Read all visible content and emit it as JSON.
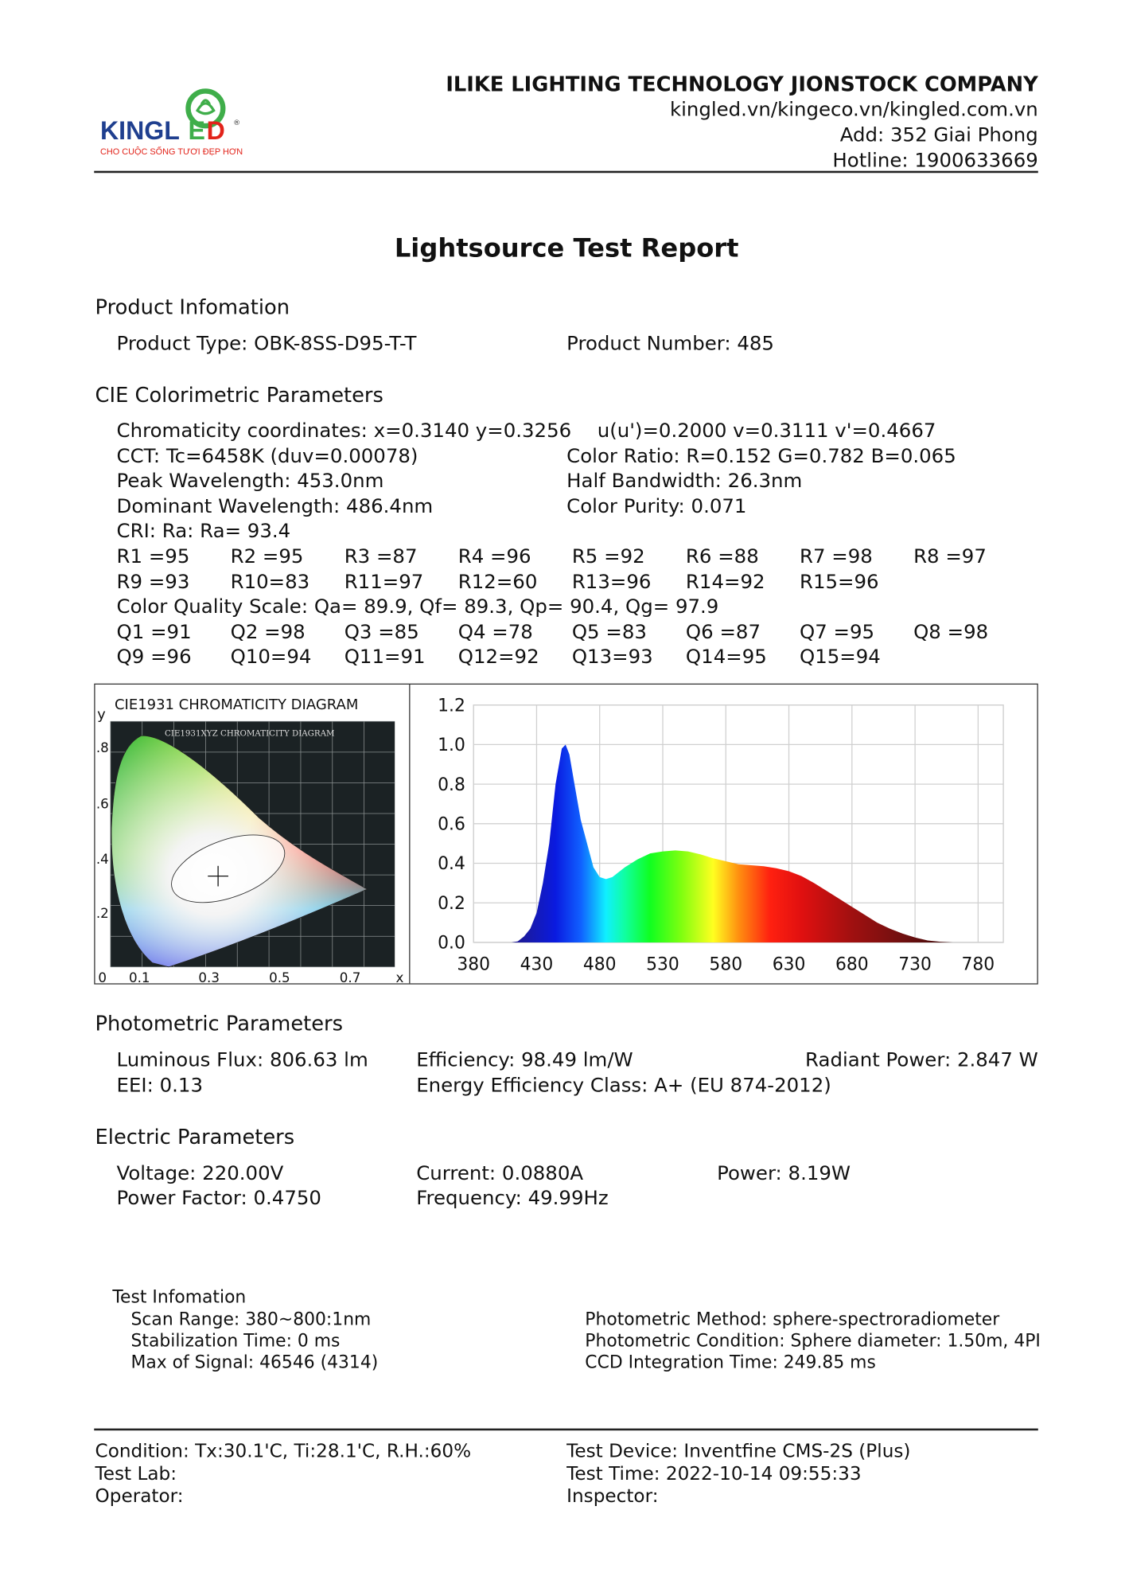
{
  "header": {
    "logo_text": "KINGLED",
    "logo_slogan": "CHO CUỘC SỐNG TƯƠI ĐẸP HƠN",
    "company": "ILIKE LIGHTING TECHNOLOGY JIONSTOCK COMPANY",
    "websites": "kingled.vn/kingeco.vn/kingled.com.vn",
    "address": "Add: 352 Giai Phong",
    "hotline": "Hotline: 1900633669",
    "brand_colors": {
      "blue": "#1f3f8f",
      "green": "#3fae4a",
      "red": "#e2231a"
    }
  },
  "title": "Lightsource Test Report",
  "product": {
    "heading": "Product Infomation",
    "type": "Product Type: OBK-8SS-D95-T-T",
    "number": "Product Number: 485"
  },
  "cie": {
    "heading": "CIE Colorimetric Parameters",
    "chromaticity": "Chromaticity coordinates: x=0.3140 y=0.3256",
    "uv": "u(u')=0.2000 v=0.3111 v'=0.4667",
    "cct": "CCT: Tc=6458K (duv=0.00078)",
    "color_ratio": "Color Ratio: R=0.152  G=0.782  B=0.065",
    "peak": "Peak Wavelength: 453.0nm",
    "half_bandwidth": "Half Bandwidth: 26.3nm",
    "dominant": "Dominant Wavelength: 486.4nm",
    "purity": "Color Purity: 0.071",
    "cri": "CRI: Ra: Ra= 93.4",
    "r_row1": [
      "R1 =95",
      "R2 =95",
      "R3 =87",
      "R4 =96",
      "R5 =92",
      "R6 =88",
      "R7 =98",
      "R8 =97"
    ],
    "r_row2": [
      "R9 =93",
      "R10=83",
      "R11=97",
      "R12=60",
      "R13=96",
      "R14=92",
      "R15=96"
    ],
    "cqs": "Color Quality Scale: Qa= 89.9, Qf= 89.3, Qp= 90.4, Qg= 97.9",
    "q_row1": [
      "Q1 =91",
      "Q2 =98",
      "Q3 =85",
      "Q4 =78",
      "Q5 =83",
      "Q6 =87",
      "Q7 =95",
      "Q8 =98"
    ],
    "q_row2": [
      "Q9 =96",
      "Q10=94",
      "Q11=91",
      "Q12=92",
      "Q13=93",
      "Q14=95",
      "Q15=94"
    ]
  },
  "chart_data": [
    {
      "type": "image",
      "title": "CIE1931 CHROMATICITY DIAGRAM",
      "inner_title": "CIE1931XYZ CHROMATICITY DIAGRAM",
      "xlabel": "x",
      "ylabel": "y",
      "x_ticks": [
        "0",
        "0.1",
        "0.3",
        "0.5",
        "0.7"
      ],
      "y_ticks": [
        ".8",
        ".6",
        ".4",
        ".2"
      ],
      "marker": {
        "x": 0.314,
        "y": 0.3256
      }
    },
    {
      "type": "area",
      "title": "",
      "xlabel": "",
      "ylabel": "",
      "xlim": [
        380,
        800
      ],
      "ylim": [
        0,
        1.2
      ],
      "x_ticks": [
        "380",
        "430",
        "480",
        "530",
        "580",
        "630",
        "680",
        "730",
        "780"
      ],
      "y_ticks": [
        "1.2",
        "1.0",
        "0.8",
        "0.6",
        "0.4",
        "0.2",
        "0.0"
      ],
      "grid": true,
      "fill": "visible-spectrum gradient",
      "x": [
        380,
        410,
        415,
        420,
        425,
        430,
        435,
        440,
        445,
        450,
        453,
        456,
        460,
        465,
        470,
        475,
        480,
        485,
        490,
        500,
        510,
        520,
        530,
        540,
        550,
        560,
        570,
        580,
        590,
        600,
        610,
        620,
        630,
        640,
        650,
        660,
        670,
        680,
        690,
        700,
        710,
        720,
        730,
        740,
        750,
        760
      ],
      "y": [
        0,
        0,
        0.005,
        0.03,
        0.07,
        0.15,
        0.3,
        0.5,
        0.8,
        0.98,
        1.0,
        0.95,
        0.8,
        0.62,
        0.5,
        0.38,
        0.33,
        0.32,
        0.33,
        0.38,
        0.42,
        0.45,
        0.46,
        0.465,
        0.46,
        0.445,
        0.425,
        0.41,
        0.395,
        0.39,
        0.385,
        0.375,
        0.36,
        0.335,
        0.3,
        0.26,
        0.22,
        0.18,
        0.14,
        0.1,
        0.07,
        0.045,
        0.025,
        0.01,
        0.003,
        0
      ]
    }
  ],
  "photometric": {
    "heading": "Photometric Parameters",
    "flux": "Luminous Flux: 806.63 lm",
    "efficiency": "Efficiency: 98.49 lm/W",
    "radiant": "Radiant Power: 2.847 W",
    "eei": "EEI:  0.13",
    "eec": "Energy Efficiency Class: A+ (EU 874-2012)"
  },
  "electric": {
    "heading": "Electric Parameters",
    "voltage": "Voltage: 220.00V",
    "current": "Current: 0.0880A",
    "power": "Power: 8.19W",
    "pf": "Power Factor: 0.4750",
    "freq": "Frequency: 49.99Hz"
  },
  "test_info": {
    "heading": "Test Infomation",
    "scan": "Scan Range: 380~800:1nm",
    "stab": "Stabilization Time: 0 ms",
    "max": "Max of Signal: 46546 (4314)",
    "method": "Photometric Method: sphere-spectroradiometer",
    "condition": "Photometric Condition: Sphere diameter: 1.50m, 4PI",
    "ccd": "CCD Integration Time: 249.85 ms"
  },
  "footer": {
    "condition": "Condition: Tx:30.1'C, Ti:28.1'C, R.H.:60%",
    "device": "Test Device: Inventfine CMS-2S (Plus)",
    "lab": "Test Lab:",
    "time": "Test Time: 2022-10-14 09:55:33",
    "operator": "Operator:",
    "inspector": "Inspector:"
  }
}
